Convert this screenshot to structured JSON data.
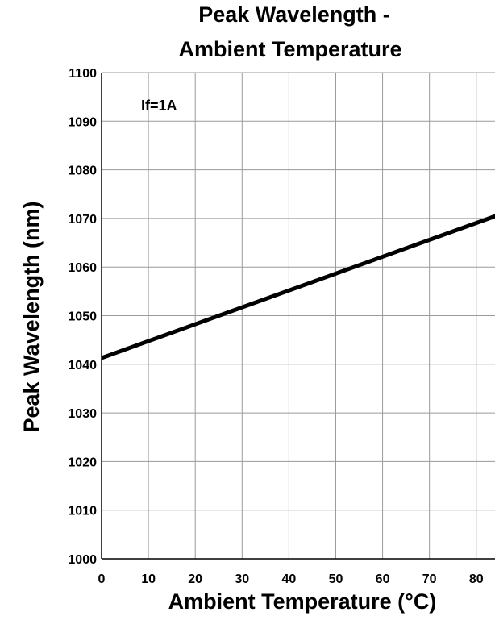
{
  "chart_data": {
    "type": "line",
    "title_lines": [
      "Peak Wavelength -",
      "Ambient Temperature"
    ],
    "xlabel": "Ambient Temperature (°C)",
    "ylabel": "Peak Wavelength (nm)",
    "xlim": [
      0,
      85
    ],
    "ylim": [
      1000,
      1100
    ],
    "x_ticks": [
      0,
      10,
      20,
      30,
      40,
      50,
      60,
      70,
      80
    ],
    "y_ticks": [
      1000,
      1010,
      1020,
      1030,
      1040,
      1050,
      1060,
      1070,
      1080,
      1090,
      1100
    ],
    "grid": true,
    "annotation": "If=1A",
    "series": [
      {
        "x": [
          0,
          85
        ],
        "y": [
          1041.3,
          1070.8
        ]
      }
    ]
  }
}
